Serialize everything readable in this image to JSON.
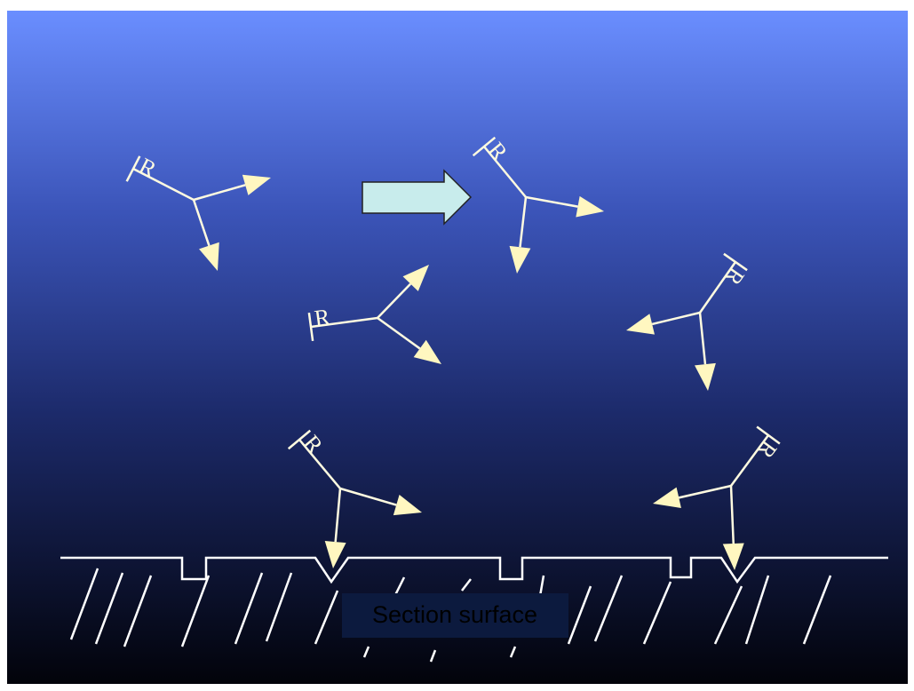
{
  "symbols": [
    {
      "label": "R"
    },
    {
      "label": "R"
    },
    {
      "label": "R"
    },
    {
      "label": "R"
    },
    {
      "label": "R"
    },
    {
      "label": "R"
    }
  ],
  "surface_label": "Section surface"
}
